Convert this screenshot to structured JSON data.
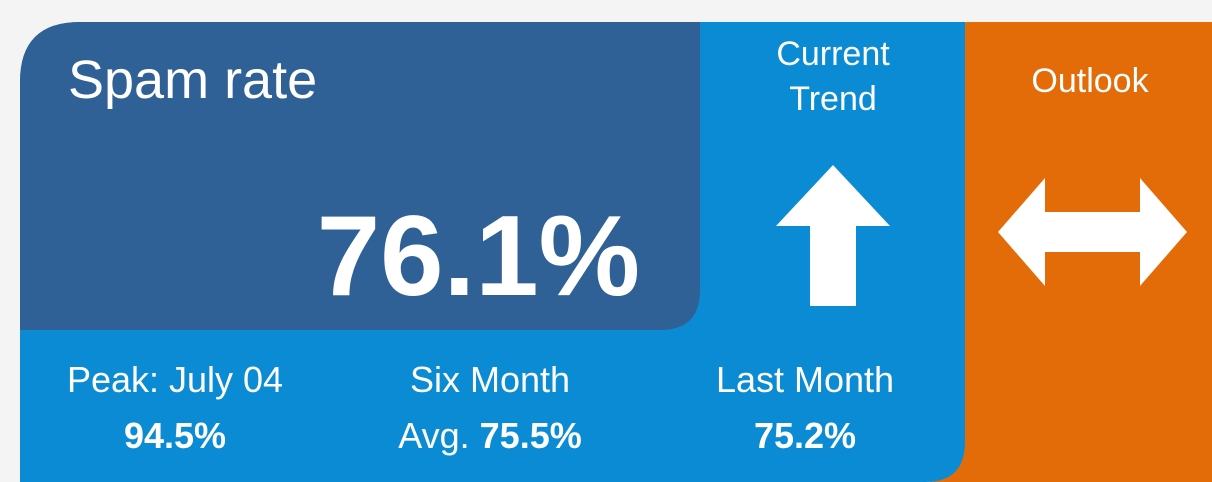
{
  "widget": {
    "title": "Spam rate",
    "rate": "76.1%",
    "trend": {
      "label": [
        "Current",
        "Trend"
      ]
    },
    "outlook": {
      "label": "Outlook"
    },
    "stats": [
      {
        "label": "Peak: July 04",
        "value": "94.5%"
      },
      {
        "label": "Six Month",
        "prefix": "Avg.",
        "value": "75.5%"
      },
      {
        "label": "Last Month",
        "value": "75.2%"
      }
    ]
  }
}
